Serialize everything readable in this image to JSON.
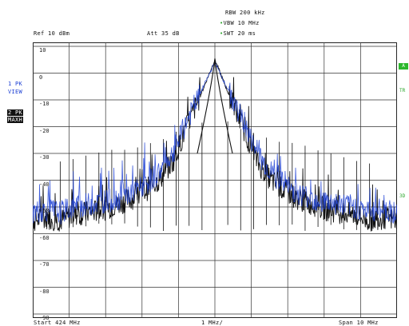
{
  "header": {
    "rbw": "RBW 200 kHz",
    "vbw": "VBW 10 MHz",
    "swt": "SWT 20 ms",
    "ref": "Ref  10 dBm",
    "att": "Att  35 dB"
  },
  "left_panel": {
    "trace1_line1": "1 PK",
    "trace1_line2": "VIEW",
    "trace2_line1": "2 PK",
    "trace2_line2": "MAXH"
  },
  "right_panel": {
    "mark_a": "A",
    "label_tr": "TR",
    "label_3d": "3D"
  },
  "footer": {
    "start": "Start  424 MHz",
    "center": "1 MHz/",
    "span": "Span  10 MHz"
  },
  "chart_data": {
    "type": "line",
    "ylim": [
      -90,
      10
    ],
    "y_ticks": [
      10,
      0,
      -10,
      -20,
      -30,
      -40,
      -50,
      -60,
      -70,
      -80,
      -90
    ],
    "y_tick_labels": [
      "10",
      "0",
      "-10",
      "-20",
      "-30",
      "-40",
      "-50",
      "-60",
      "-70",
      "-80",
      "-90"
    ],
    "x_divisions": 10,
    "grid": true,
    "peak_dbm": 5,
    "noise_floor_dbm": -57,
    "series": [
      {
        "values": [
          -55,
          -54,
          -55,
          -53,
          -52,
          -51,
          -49,
          -47,
          -44,
          -40,
          -33,
          -20,
          -8,
          5,
          -8,
          -20,
          -33,
          -40,
          -44,
          -47,
          -49,
          -51,
          -52,
          -53,
          -55,
          -54,
          -55
        ],
        "color": "#111111"
      },
      {
        "values": [
          -52,
          -51,
          -52,
          -50,
          -49,
          -48,
          -47,
          -45,
          -42,
          -37,
          -30,
          -18,
          -7,
          4,
          -7,
          -18,
          -30,
          -37,
          -42,
          -45,
          -47,
          -48,
          -49,
          -50,
          -52,
          -51,
          -52
        ],
        "color": "#1c3fd4"
      }
    ],
    "spurs_max_dbm": [
      -33,
      -32,
      -31,
      -30,
      -29,
      -28,
      -27,
      -26,
      -24,
      -22,
      -20,
      -18
    ]
  }
}
